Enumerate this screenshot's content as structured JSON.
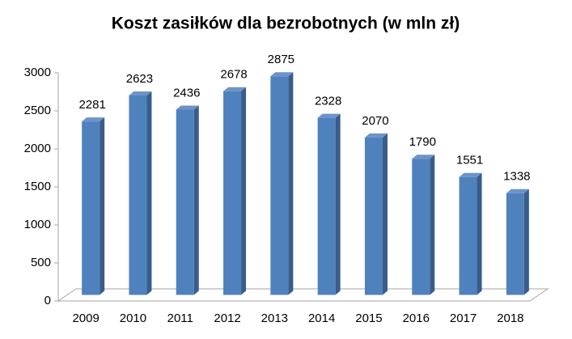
{
  "chart_data": {
    "type": "bar3d",
    "title": "Koszt zasiłków dla bezrobotnych (w mln zł)",
    "categories": [
      "2009",
      "2010",
      "2011",
      "2012",
      "2013",
      "2014",
      "2015",
      "2016",
      "2017",
      "2018"
    ],
    "values": [
      2281,
      2623,
      2436,
      2678,
      2875,
      2328,
      2070,
      1790,
      1551,
      1338
    ],
    "color": "#4f81bd",
    "ylim": [
      0,
      3000
    ],
    "yticks": [
      0,
      500,
      1000,
      1500,
      2000,
      2500,
      3000
    ]
  }
}
